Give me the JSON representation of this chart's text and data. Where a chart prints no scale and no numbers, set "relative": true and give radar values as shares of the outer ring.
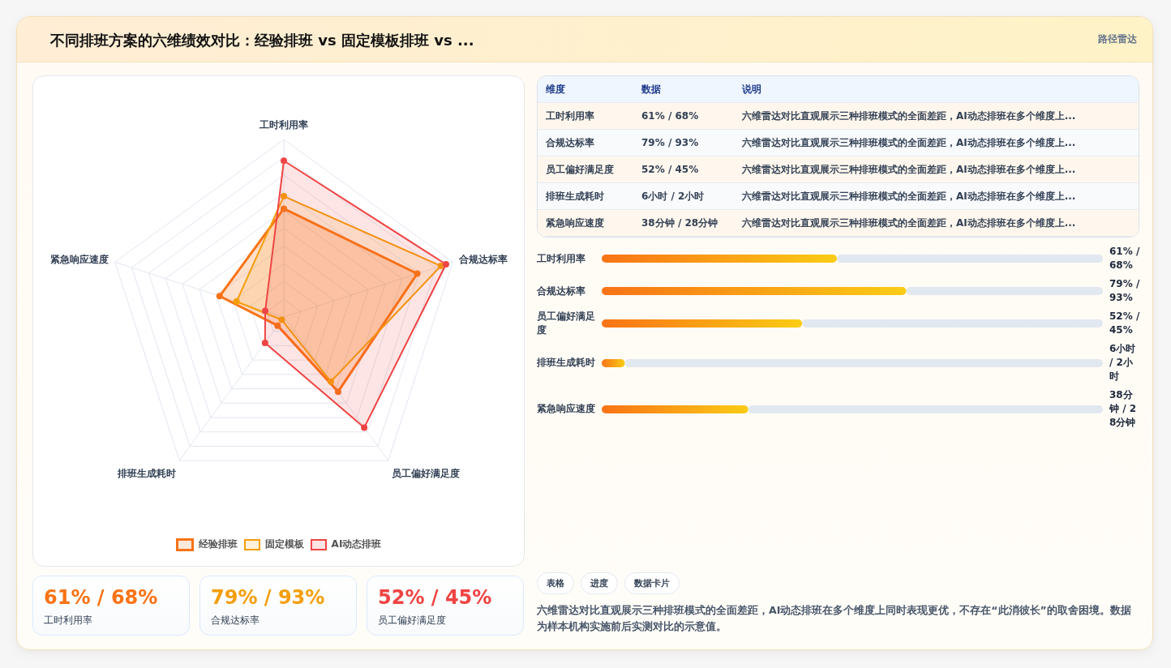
{
  "chart_data": [
    {
      "type": "radar",
      "title": "不同排班方案的六维绩效对比：经验排班 vs 固定模板排班 vs ...",
      "annotations": [
        "路径雷达"
      ],
      "categories": [
        "工时利用率",
        "合规达标率",
        "员工偏好满足度",
        "排班生成耗时",
        "紧急响应速度"
      ],
      "relative": true,
      "grid": true,
      "legend": "bottom",
      "marker": "circle",
      "series": [
        {
          "name": "经验排班",
          "color": "#f97316",
          "values": [
            0.61,
            0.79,
            0.52,
            0.06,
            0.38
          ]
        },
        {
          "name": "固定模板",
          "color": "#f59e0b",
          "values": [
            0.68,
            0.93,
            0.45,
            0.02,
            0.28
          ]
        },
        {
          "name": "AI动态排班",
          "color": "#ef4444",
          "values": [
            0.88,
            0.96,
            0.77,
            0.18,
            0.11
          ]
        }
      ]
    },
    {
      "type": "other",
      "annotations": [
        "维度",
        "数据",
        "说明",
        "工时利用率",
        "61% / 68%",
        "六维雷达对比直观展示三种排班模式的全面差距，AI动态排班在多个维度上...",
        "合规达标率",
        "79% / 93%",
        "六维雷达对比直观展示三种排班模式的全面差距，AI动态排班在多个维度上...",
        "员工偏好满足度",
        "52% / 45%",
        "六维雷达对比直观展示三种排班模式的全面差距，AI动态排班在多个维度上...",
        "排班生成耗时",
        "6小时 / 2小时",
        "六维雷达对比直观展示三种排班模式的全面差距，AI动态排班在多个维度上...",
        "紧急响应速度",
        "38分钟 / 28分钟",
        "六维雷达对比直观展示三种排班模式的全面差距，AI动态排班在多个维度上..."
      ]
    },
    {
      "type": "bar",
      "orientation": "horizontal",
      "xlim": [
        0,
        130
      ],
      "tick_labels": false,
      "color": "#f97316",
      "categories": [
        "工时利用率",
        "合规达标率",
        "员工偏好满足度",
        "排班生成耗时",
        "紧急响应速度"
      ],
      "values": [
        61,
        79,
        52,
        6,
        38
      ],
      "value_labels": [
        "61% / 68%",
        "79% / 93%",
        "52% / 45%",
        "6小时 / 2小时",
        "38分钟 / 28分钟"
      ]
    },
    {
      "type": "other",
      "colors": [
        "#f97316",
        "#f59e0b",
        "#ef4444"
      ],
      "annotations": [
        "61% / 68%",
        "工时利用率",
        "79% / 93%",
        "合规达标率",
        "52% / 45%",
        "员工偏好满足度"
      ]
    },
    {
      "type": "other",
      "annotations": [
        "表格",
        "进度",
        "数据卡片",
        "六维雷达对比直观展示三种排班模式的全面差距，AI动态排班在多个维度上同时表现更优，不存在“此消彼长”的取舍困境。数据为样本机构实施前后实测对比的示意值。"
      ]
    }
  ]
}
